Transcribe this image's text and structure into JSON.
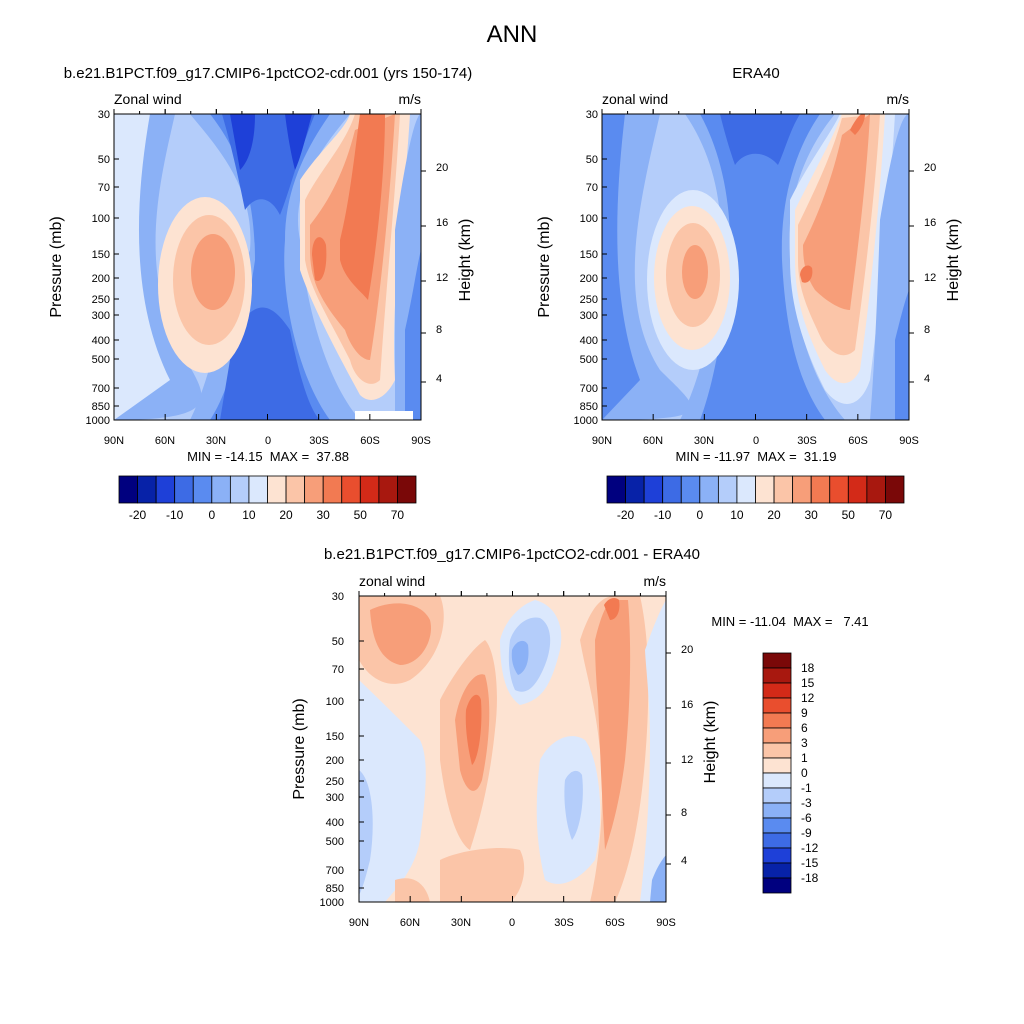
{
  "page_title": "ANN",
  "colors": {
    "blue_red_scale": [
      "#00007f",
      "#0722a8",
      "#1e40d8",
      "#3d6be5",
      "#5a8bf0",
      "#8bb1f6",
      "#b4cdfa",
      "#dbe8fd",
      "#fde3d2",
      "#fbc5a8",
      "#f79e79",
      "#f27a52",
      "#e94e2e",
      "#d32a18",
      "#a8180f",
      "#7a0808"
    ]
  },
  "chart_data": [
    {
      "type": "heatmap",
      "panel": "model",
      "title": "b.e21.B1PCT.f09_g17.CMIP6-1pctCO2-cdr.001 (yrs 150-174)",
      "left_label": "Zonal wind",
      "right_label": "m/s",
      "xlabel": "",
      "ylabel": "Pressure (mb)",
      "ylabel_right": "Height (km)",
      "x_ticks": [
        "90N",
        "60N",
        "30N",
        "0",
        "30S",
        "60S",
        "90S"
      ],
      "y_ticks": [
        "30",
        "50",
        "70",
        "100",
        "150",
        "200",
        "250",
        "300",
        "400",
        "500",
        "700",
        "850",
        "1000"
      ],
      "y_right_ticks": [
        "20",
        "16",
        "12",
        "8",
        "4"
      ],
      "stats": "MIN = -14.15  MAX =  37.88",
      "colorbar_labels": [
        "-20",
        "-10",
        "0",
        "10",
        "20",
        "30",
        "50",
        "70"
      ],
      "min": -14.15,
      "max": 37.88
    },
    {
      "type": "heatmap",
      "panel": "obs",
      "title": "ERA40",
      "left_label": "zonal wind",
      "right_label": "m/s",
      "xlabel": "",
      "ylabel": "Pressure (mb)",
      "ylabel_right": "Height (km)",
      "x_ticks": [
        "90N",
        "60N",
        "30N",
        "0",
        "30S",
        "60S",
        "90S"
      ],
      "y_ticks": [
        "30",
        "50",
        "70",
        "100",
        "150",
        "200",
        "250",
        "300",
        "400",
        "500",
        "700",
        "850",
        "1000"
      ],
      "y_right_ticks": [
        "20",
        "16",
        "12",
        "8",
        "4"
      ],
      "stats": "MIN = -11.97  MAX =  31.19",
      "colorbar_labels": [
        "-20",
        "-10",
        "0",
        "10",
        "20",
        "30",
        "50",
        "70"
      ],
      "min": -11.97,
      "max": 31.19
    },
    {
      "type": "heatmap",
      "panel": "diff",
      "title": "b.e21.B1PCT.f09_g17.CMIP6-1pctCO2-cdr.001 - ERA40",
      "left_label": "zonal wind",
      "right_label": "m/s",
      "xlabel": "",
      "ylabel": "Pressure (mb)",
      "ylabel_right": "Height (km)",
      "x_ticks": [
        "90N",
        "60N",
        "30N",
        "0",
        "30S",
        "60S",
        "90S"
      ],
      "y_ticks": [
        "30",
        "50",
        "70",
        "100",
        "150",
        "200",
        "250",
        "300",
        "400",
        "500",
        "700",
        "850",
        "1000"
      ],
      "y_right_ticks": [
        "20",
        "16",
        "12",
        "8",
        "4"
      ],
      "stats": "MIN = -11.04  MAX =   7.41",
      "colorbar_labels": [
        "18",
        "15",
        "12",
        "9",
        "6",
        "3",
        "1",
        "0",
        "-1",
        "-3",
        "-6",
        "-9",
        "-12",
        "-15",
        "-18"
      ],
      "min": -11.04,
      "max": 7.41
    }
  ]
}
